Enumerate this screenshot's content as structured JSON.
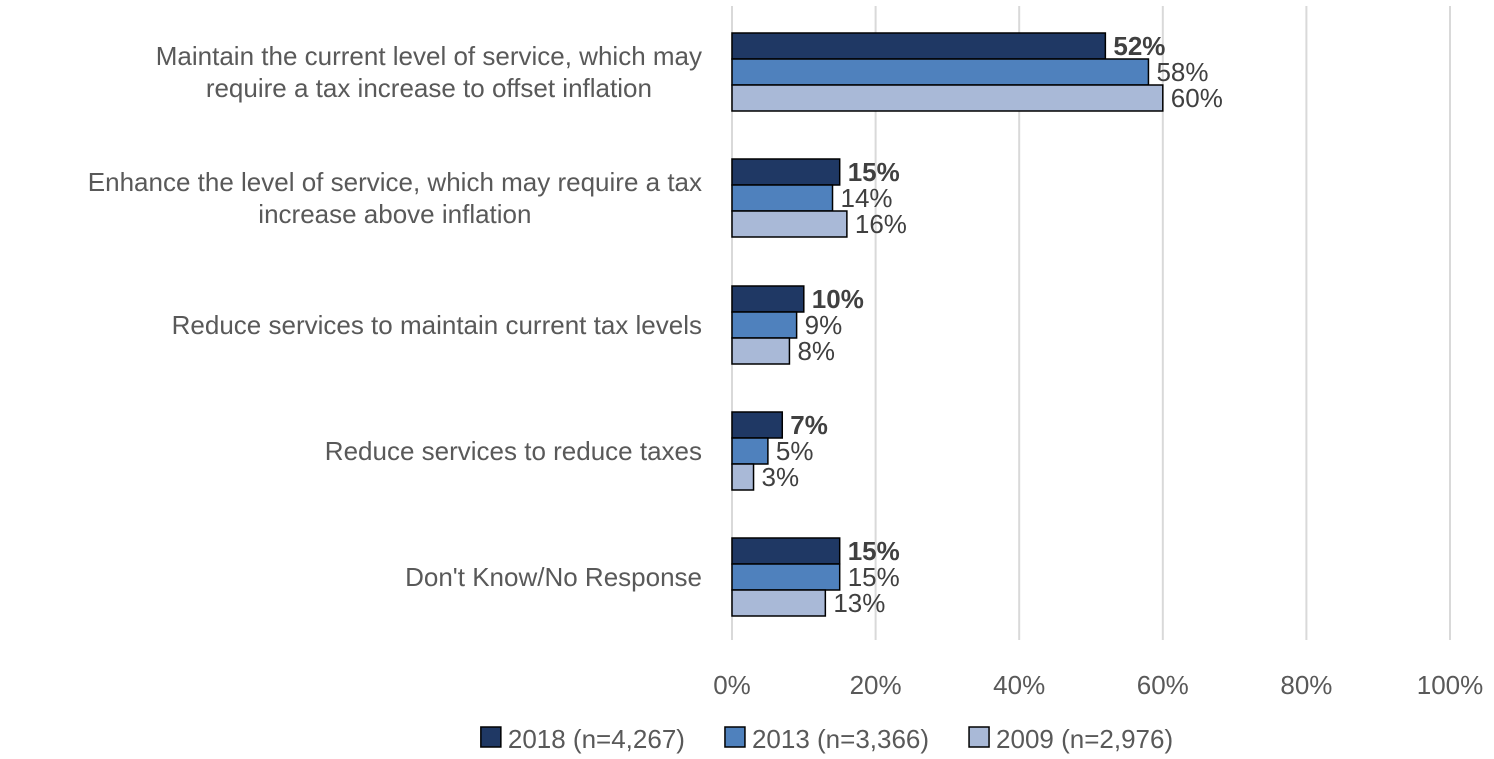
{
  "chart_data": {
    "type": "bar",
    "orientation": "horizontal",
    "categories": [
      [
        "Maintain the current level of service, which may",
        "require a tax increase to offset inflation"
      ],
      [
        "Enhance the level of service, which may require a tax",
        "increase above inflation"
      ],
      [
        "Reduce services to maintain current tax levels"
      ],
      [
        "Reduce services to reduce taxes"
      ],
      [
        "Don't Know/No Response"
      ]
    ],
    "series": [
      {
        "name": "2018 (n=4,267)",
        "values": [
          52,
          15,
          10,
          7,
          15
        ],
        "color": "#1f3864",
        "label_bold": true
      },
      {
        "name": "2013 (n=3,366)",
        "values": [
          58,
          14,
          9,
          5,
          15
        ],
        "color": "#4f81bd",
        "label_bold": false
      },
      {
        "name": "2009 (n=2,976)",
        "values": [
          60,
          16,
          8,
          3,
          13
        ],
        "color": "#a9b9d7",
        "label_bold": false
      }
    ],
    "value_suffix": "%",
    "xlim": [
      0,
      100
    ],
    "xticks": [
      "0%",
      "20%",
      "40%",
      "60%",
      "80%",
      "100%"
    ],
    "xtick_values": [
      0,
      20,
      40,
      60,
      80,
      100
    ],
    "grid": true,
    "legend_position": "bottom"
  }
}
